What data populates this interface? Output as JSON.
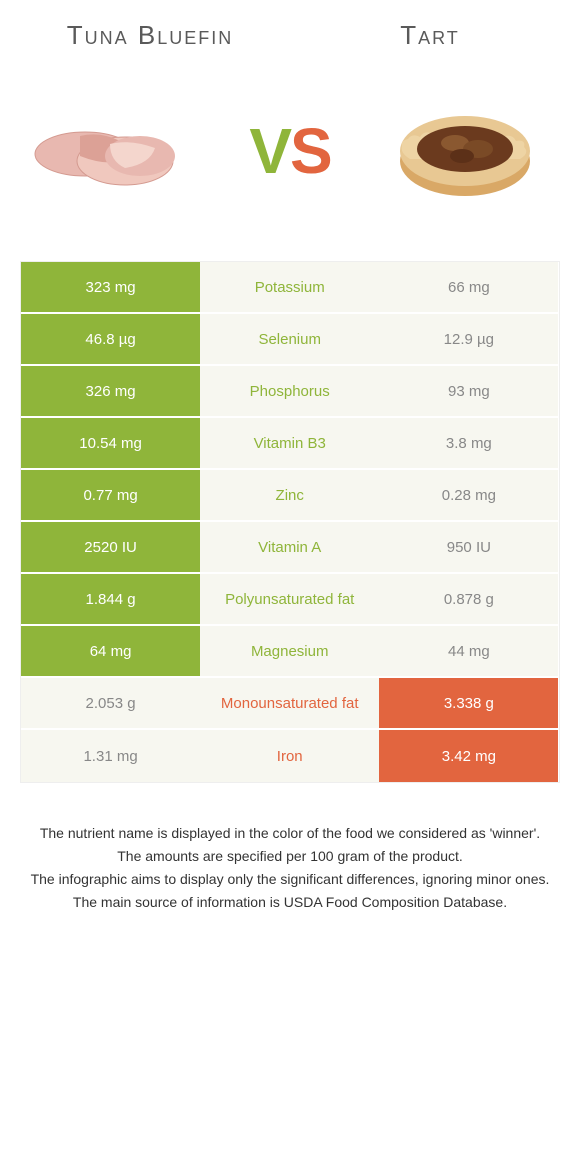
{
  "header": {
    "left_title": "Tuna Bluefin",
    "right_title": "Tart"
  },
  "vs": {
    "v": "V",
    "s": "S"
  },
  "colors": {
    "green": "#8fb53a",
    "orange": "#e2653f",
    "neutral_bg": "#f7f7f0",
    "neutral_text": "#888888"
  },
  "table": {
    "rows": [
      {
        "nutrient": "Potassium",
        "left": "323 mg",
        "right": "66 mg",
        "winner": "left"
      },
      {
        "nutrient": "Selenium",
        "left": "46.8 µg",
        "right": "12.9 µg",
        "winner": "left"
      },
      {
        "nutrient": "Phosphorus",
        "left": "326 mg",
        "right": "93 mg",
        "winner": "left"
      },
      {
        "nutrient": "Vitamin B3",
        "left": "10.54 mg",
        "right": "3.8 mg",
        "winner": "left"
      },
      {
        "nutrient": "Zinc",
        "left": "0.77 mg",
        "right": "0.28 mg",
        "winner": "left"
      },
      {
        "nutrient": "Vitamin A",
        "left": "2520 IU",
        "right": "950 IU",
        "winner": "left"
      },
      {
        "nutrient": "Polyunsaturated fat",
        "left": "1.844 g",
        "right": "0.878 g",
        "winner": "left"
      },
      {
        "nutrient": "Magnesium",
        "left": "64 mg",
        "right": "44 mg",
        "winner": "left"
      },
      {
        "nutrient": "Monounsaturated fat",
        "left": "2.053 g",
        "right": "3.338 g",
        "winner": "right"
      },
      {
        "nutrient": "Iron",
        "left": "1.31 mg",
        "right": "3.42 mg",
        "winner": "right"
      }
    ]
  },
  "footnotes": [
    "The nutrient name is displayed in the color of the food we considered as 'winner'.",
    "The amounts are specified per 100 gram of the product.",
    "The infographic aims to display only the significant differences, ignoring minor ones.",
    "The main source of information is USDA Food Composition Database."
  ]
}
